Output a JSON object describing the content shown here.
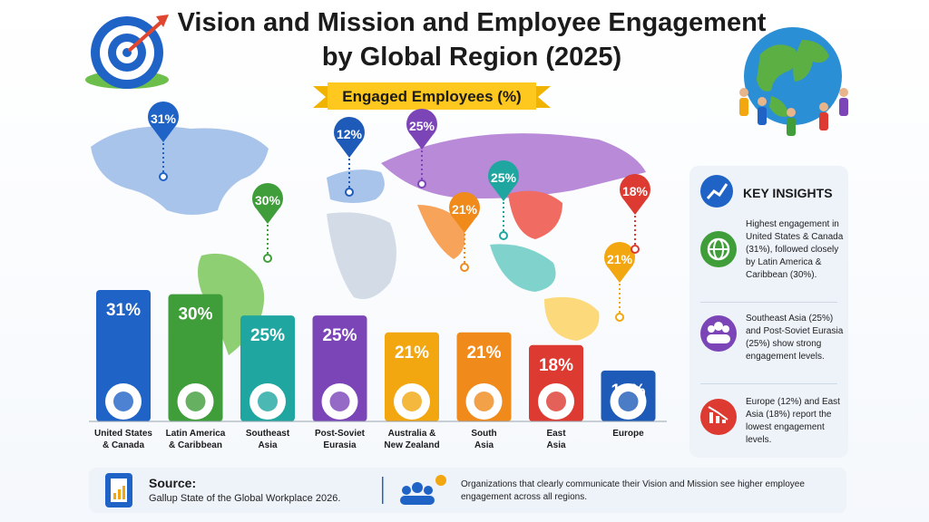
{
  "title_line1": "Vision and Mission and Employee Engagement",
  "title_line2": "by Global Region (2025)",
  "banner": "Engaged Employees (%)",
  "chart_data": {
    "type": "bar",
    "title": "Vision and Mission and Employee Engagement by Global Region (2025)",
    "ylabel": "Engaged Employees (%)",
    "categories": [
      "United States & Canada",
      "Latin America & Caribbean",
      "Southeast Asia",
      "Post-Soviet Eurasia",
      "Australia & New Zealand",
      "South Asia",
      "East Asia",
      "Europe"
    ],
    "category_lines": [
      [
        "United States",
        "& Canada"
      ],
      [
        "Latin America",
        "& Caribbean"
      ],
      [
        "Southeast",
        "Asia"
      ],
      [
        "Post-Soviet",
        "Eurasia"
      ],
      [
        "Australia &",
        "New Zealand"
      ],
      [
        "South",
        "Asia"
      ],
      [
        "East",
        "Asia"
      ],
      [
        "Europe",
        ""
      ]
    ],
    "values": [
      31,
      30,
      25,
      25,
      21,
      21,
      18,
      12
    ],
    "value_labels": [
      "31%",
      "30%",
      "25%",
      "25%",
      "21%",
      "21%",
      "18%",
      "12%"
    ],
    "colors": [
      "#1f63c6",
      "#3f9d3a",
      "#1fa6a0",
      "#7b45b8",
      "#f2a60f",
      "#f08a1a",
      "#dd3a31",
      "#1e5bb8"
    ],
    "ylim": [
      0,
      31
    ],
    "grid": false
  },
  "insights": {
    "title": "KEY INSIGHTS",
    "items": [
      {
        "text": "Highest engagement in United States & Canada (31%), followed closely by Latin America & Caribbean (30%).",
        "icon": "globe-icon",
        "color": "#3f9d3a"
      },
      {
        "text": "Southeast Asia (25%) and Post-Soviet Eurasia (25%) show strong engagement levels.",
        "icon": "people-icon",
        "color": "#7b45b8"
      },
      {
        "text": "Europe (12%) and East Asia (18%) report the lowest engagement levels.",
        "icon": "declining-chart-icon",
        "color": "#dd3a31"
      }
    ]
  },
  "footer": {
    "source_title": "Source:",
    "source_text": "Gallup State of the Global Workplace 2026.",
    "message": "Organizations that clearly communicate their Vision and Mission see higher employee engagement across all regions."
  }
}
